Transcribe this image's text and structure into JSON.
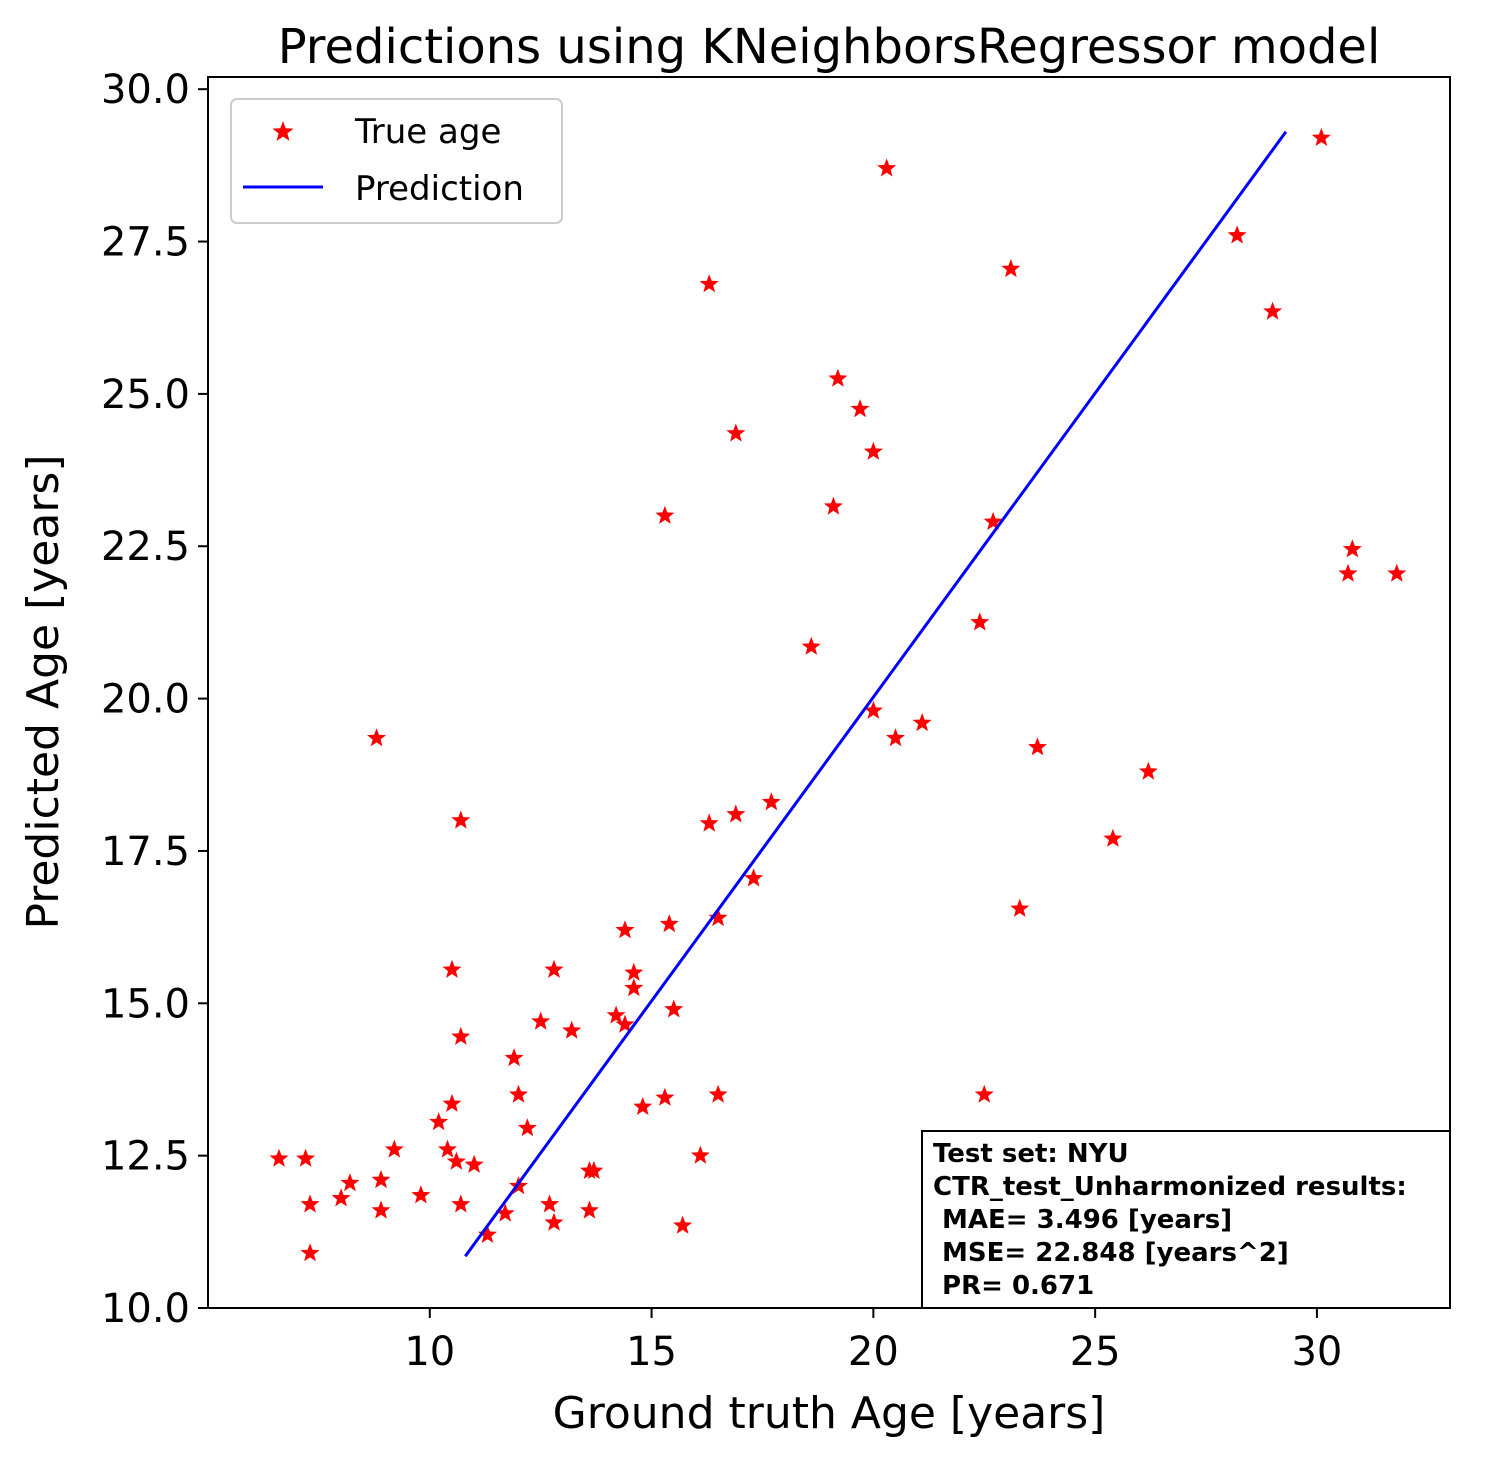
{
  "chart_data": {
    "type": "scatter",
    "title": "Predictions using KNeighborsRegressor model",
    "xlabel": "Ground truth Age [years]",
    "ylabel": "Predicted Age [years]",
    "xlim": [
      5.0,
      33.0
    ],
    "ylim": [
      10.0,
      30.2
    ],
    "xticks": [
      10,
      15,
      20,
      25,
      30
    ],
    "xtick_labels": [
      "10",
      "15",
      "20",
      "25",
      "30"
    ],
    "yticks": [
      10.0,
      12.5,
      15.0,
      17.5,
      20.0,
      22.5,
      25.0,
      27.5,
      30.0
    ],
    "ytick_labels": [
      "10.0",
      "12.5",
      "15.0",
      "17.5",
      "20.0",
      "22.5",
      "25.0",
      "27.5",
      "30.0"
    ],
    "grid": false,
    "legend_position": "top-left",
    "legend": {
      "points_label": "True age",
      "line_label": "Prediction"
    },
    "colors": {
      "points": "#ff0000",
      "line": "#0000ff"
    },
    "series": [
      {
        "name": "True age",
        "kind": "scatter",
        "marker": "star",
        "points": [
          [
            6.6,
            12.45
          ],
          [
            7.2,
            12.45
          ],
          [
            7.3,
            11.7
          ],
          [
            7.3,
            10.9
          ],
          [
            8.0,
            11.8
          ],
          [
            8.2,
            12.05
          ],
          [
            8.8,
            19.35
          ],
          [
            8.9,
            12.1
          ],
          [
            8.9,
            11.6
          ],
          [
            9.2,
            12.6
          ],
          [
            9.8,
            11.85
          ],
          [
            10.2,
            13.05
          ],
          [
            10.4,
            12.6
          ],
          [
            10.5,
            15.55
          ],
          [
            10.5,
            13.35
          ],
          [
            10.6,
            12.4
          ],
          [
            10.7,
            11.7
          ],
          [
            10.7,
            18.0
          ],
          [
            10.7,
            14.45
          ],
          [
            11.0,
            12.35
          ],
          [
            11.3,
            11.2
          ],
          [
            11.7,
            11.55
          ],
          [
            11.9,
            14.1
          ],
          [
            12.0,
            13.5
          ],
          [
            12.0,
            12.0
          ],
          [
            12.2,
            12.95
          ],
          [
            12.5,
            14.7
          ],
          [
            12.7,
            11.7
          ],
          [
            12.8,
            11.4
          ],
          [
            12.8,
            15.55
          ],
          [
            13.2,
            14.55
          ],
          [
            13.6,
            12.25
          ],
          [
            13.6,
            11.6
          ],
          [
            13.7,
            12.25
          ],
          [
            14.2,
            14.8
          ],
          [
            14.4,
            14.65
          ],
          [
            14.4,
            16.2
          ],
          [
            14.6,
            15.5
          ],
          [
            14.6,
            15.25
          ],
          [
            14.8,
            13.3
          ],
          [
            15.3,
            13.45
          ],
          [
            15.3,
            23.0
          ],
          [
            15.4,
            16.3
          ],
          [
            15.5,
            14.9
          ],
          [
            15.7,
            11.35
          ],
          [
            16.1,
            12.5
          ],
          [
            16.3,
            17.95
          ],
          [
            16.3,
            26.8
          ],
          [
            16.5,
            13.5
          ],
          [
            16.5,
            16.4
          ],
          [
            16.9,
            18.1
          ],
          [
            16.9,
            24.35
          ],
          [
            17.3,
            17.05
          ],
          [
            17.7,
            18.3
          ],
          [
            18.6,
            20.85
          ],
          [
            19.1,
            23.15
          ],
          [
            19.2,
            25.25
          ],
          [
            19.7,
            24.75
          ],
          [
            20.0,
            19.8
          ],
          [
            20.0,
            24.05
          ],
          [
            20.3,
            28.7
          ],
          [
            20.5,
            19.35
          ],
          [
            21.1,
            19.6
          ],
          [
            22.4,
            21.25
          ],
          [
            22.5,
            13.5
          ],
          [
            22.7,
            22.9
          ],
          [
            23.1,
            27.05
          ],
          [
            23.3,
            16.55
          ],
          [
            23.7,
            19.2
          ],
          [
            25.4,
            17.7
          ],
          [
            26.2,
            18.8
          ],
          [
            28.2,
            27.6
          ],
          [
            29.0,
            26.35
          ],
          [
            30.1,
            29.2
          ],
          [
            30.7,
            22.05
          ],
          [
            30.8,
            22.45
          ],
          [
            31.8,
            22.05
          ]
        ]
      },
      {
        "name": "Prediction",
        "kind": "line",
        "x": [
          10.8,
          29.3
        ],
        "y": [
          10.85,
          29.3
        ]
      }
    ],
    "annotation": {
      "lines": [
        "Test set: NYU",
        "CTR_test_Unharmonized results:",
        " MAE= 3.496 [years]",
        " MSE= 22.848 [years^2]",
        " PR= 0.671"
      ],
      "position": "bottom-right"
    }
  }
}
